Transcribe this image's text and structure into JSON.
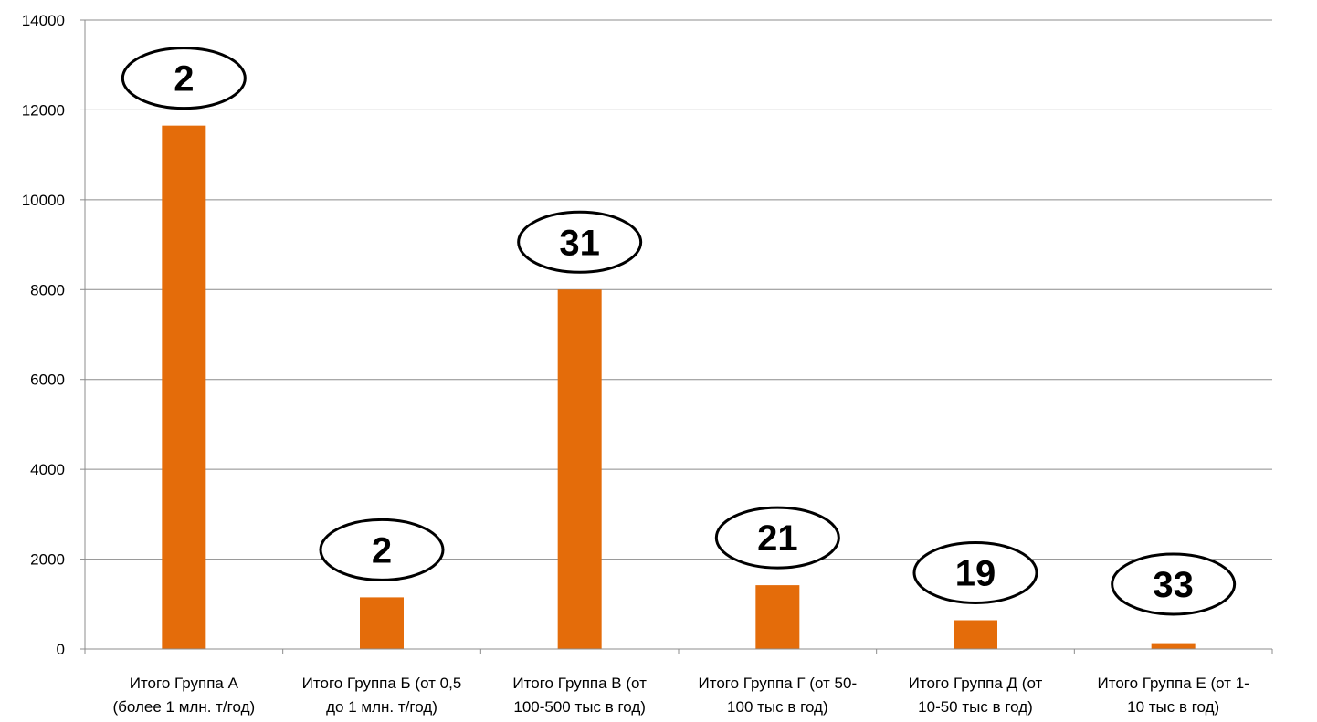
{
  "chart_data": {
    "type": "bar",
    "title": "",
    "xlabel": "",
    "ylabel": "",
    "ylim": [
      0,
      14000
    ],
    "yticks": [
      0,
      2000,
      4000,
      6000,
      8000,
      10000,
      12000,
      14000
    ],
    "grid": true,
    "legend": "none",
    "bar_color": "#E46C0A",
    "categories": [
      [
        "Итого Группа А",
        "(более 1 млн. т/год)"
      ],
      [
        "Итого Группа Б (от 0,5",
        "до 1 млн. т/год)"
      ],
      [
        "Итого Группа В (от",
        "100-500 тыс в год)"
      ],
      [
        "Итого Группа Г (от 50-",
        "100 тыс в год)"
      ],
      [
        "Итого Группа Д (от",
        "10-50 тыс в год)"
      ],
      [
        "Итого Группа Е (от 1-",
        "10 тыс в год)"
      ]
    ],
    "values": [
      11650,
      1150,
      8000,
      1420,
      640,
      130
    ],
    "annotations": [
      "2",
      "2",
      "31",
      "21",
      "19",
      "33"
    ]
  }
}
